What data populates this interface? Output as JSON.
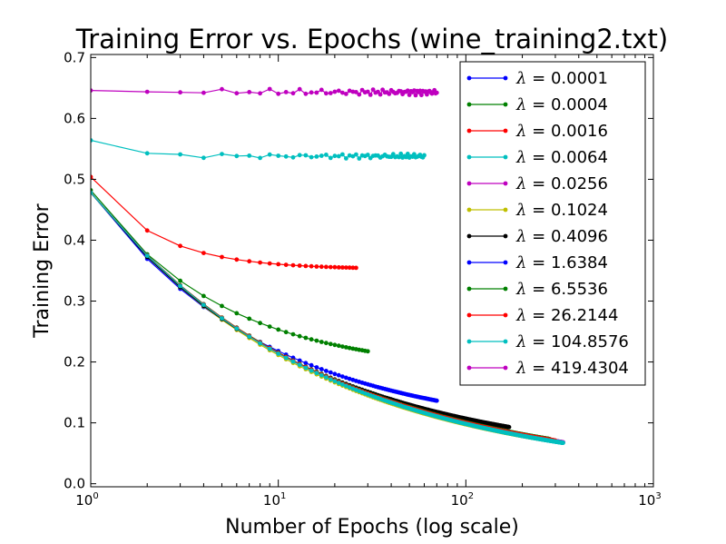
{
  "chart_data": {
    "type": "line",
    "title": "Training Error vs. Epochs (wine_training2.txt)",
    "xlabel": "Number of Epochs (log scale)",
    "ylabel": "Training Error",
    "x_scale": "log",
    "xlim": [
      1,
      1000
    ],
    "ylim": [
      -0.005,
      0.705
    ],
    "x_ticks": [
      {
        "base": "10",
        "exp": "0",
        "value": 1
      },
      {
        "base": "10",
        "exp": "1",
        "value": 10
      },
      {
        "base": "10",
        "exp": "2",
        "value": 100
      },
      {
        "base": "10",
        "exp": "3",
        "value": 1000
      }
    ],
    "y_ticks": [
      "0.0",
      "0.1",
      "0.2",
      "0.3",
      "0.4",
      "0.5",
      "0.6",
      "0.7"
    ],
    "legend_position": "top-right",
    "legend_symbol": "λ",
    "series": [
      {
        "name": "= 0.0001",
        "color": "#0000ff",
        "max_epochs": 70,
        "start": 0.478,
        "end": 0.08,
        "rate": 0.46,
        "noise": 0
      },
      {
        "name": "= 0.0004",
        "color": "#008000",
        "max_epochs": 30,
        "start": 0.482,
        "end": 0.181,
        "rate": 0.62,
        "noise": 0
      },
      {
        "name": "= 0.0016",
        "color": "#ff0000",
        "max_epochs": 26,
        "start": 0.504,
        "end": 0.352,
        "rate": 1.25,
        "noise": 0
      },
      {
        "name": "= 0.0064",
        "color": "#00bfbf",
        "max_epochs": 60,
        "start": 0.564,
        "end": 0.538,
        "rate": 2.4,
        "noise": 0.004
      },
      {
        "name": "= 0.0256",
        "color": "#bf00bf",
        "max_epochs": 330,
        "start": 0.478,
        "end": 0.01,
        "rate": 0.36,
        "noise": 0
      },
      {
        "name": "= 0.1024",
        "color": "#bfbf00",
        "max_epochs": 270,
        "start": 0.478,
        "end": 0.013,
        "rate": 0.37,
        "noise": 0
      },
      {
        "name": "= 0.4096",
        "color": "#000000",
        "max_epochs": 170,
        "start": 0.478,
        "end": 0.033,
        "rate": 0.39,
        "noise": 0
      },
      {
        "name": "= 1.6384",
        "color": "#0000ff",
        "max_epochs": 290,
        "start": 0.478,
        "end": 0.011,
        "rate": 0.36,
        "noise": 0
      },
      {
        "name": "= 6.5536",
        "color": "#008000",
        "max_epochs": 280,
        "start": 0.478,
        "end": 0.012,
        "rate": 0.36,
        "noise": 0
      },
      {
        "name": "= 26.2144",
        "color": "#ff0000",
        "max_epochs": 300,
        "start": 0.478,
        "end": 0.011,
        "rate": 0.36,
        "noise": 0
      },
      {
        "name": "= 104.8576",
        "color": "#00bfbf",
        "max_epochs": 330,
        "start": 0.478,
        "end": 0.009,
        "rate": 0.36,
        "noise": 0
      },
      {
        "name": "= 419.4304",
        "color": "#bf00bf",
        "max_epochs": 70,
        "start": 0.646,
        "end": 0.643,
        "rate": 1.0,
        "noise": 0.005
      }
    ]
  }
}
